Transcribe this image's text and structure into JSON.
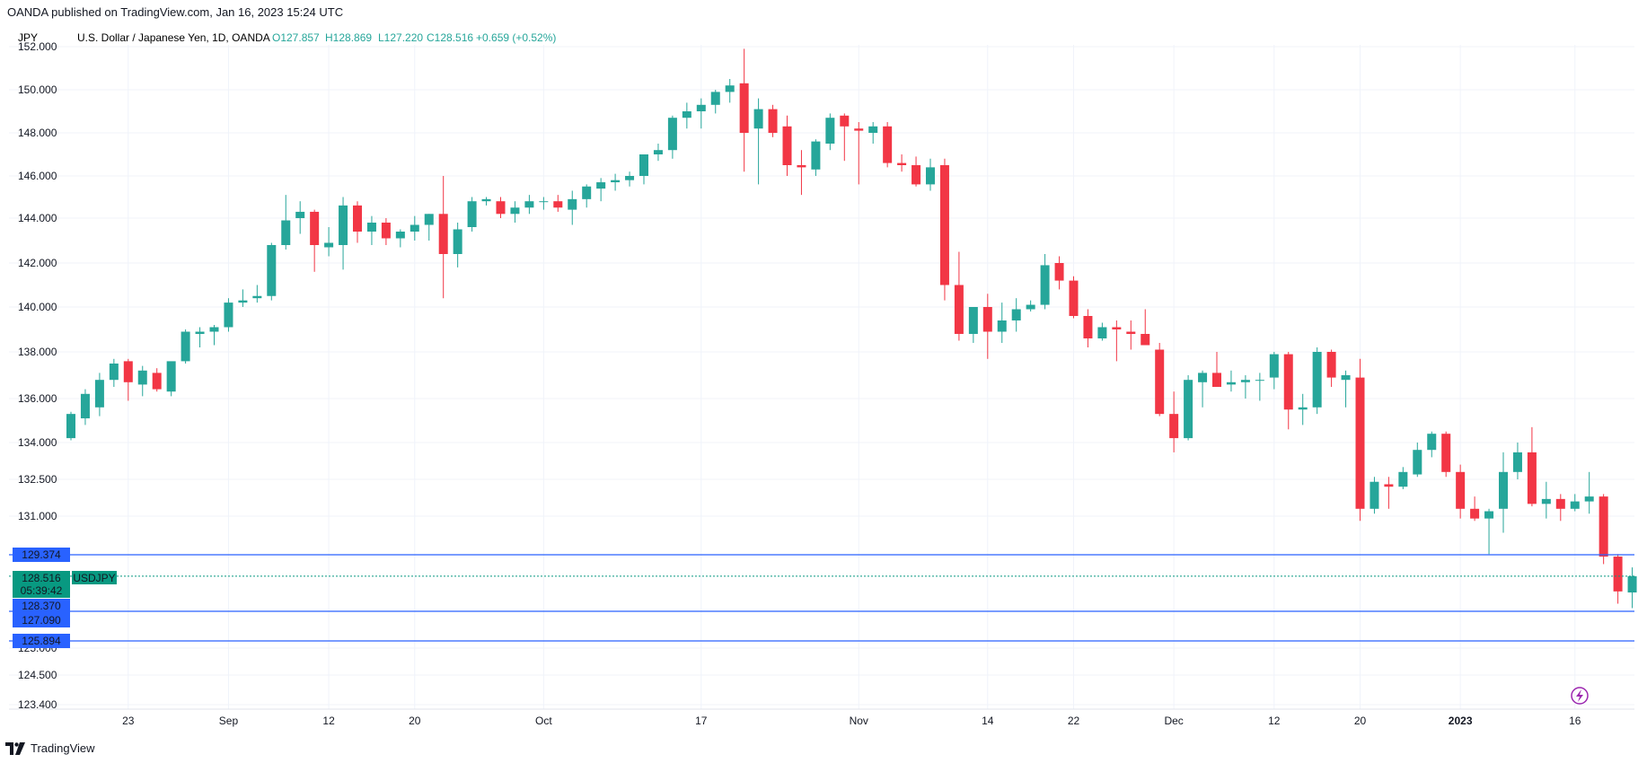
{
  "header": {
    "published": "OANDA published on TradingView.com, Jan 16, 2023 15:24 UTC"
  },
  "legend": {
    "currency": "JPY",
    "instrument": "U.S. Dollar / Japanese Yen, 1D, OANDA",
    "open": "O127.857",
    "high": "H128.869",
    "low": "L127.220",
    "close": "C128.516",
    "change": "+0.659 (+0.52%)"
  },
  "colors": {
    "up": "#26a69a",
    "down": "#f23645",
    "line": "#2962ff",
    "grid": "#f0f3fa",
    "text": "#131722"
  },
  "price_labels": {
    "current": "128.516",
    "countdown": "05:39:42",
    "symbol": "USDJPY",
    "levels": [
      "129.374",
      "128.370",
      "127.090",
      "125.894"
    ]
  },
  "footer": {
    "brand": "TradingView"
  },
  "icons": {
    "flash": "flash-circle-icon",
    "logo": "tradingview-logo-icon"
  },
  "chart_data": {
    "type": "candlestick",
    "title": "U.S. Dollar / Japanese Yen, 1D, OANDA",
    "y_ticks": [
      "152.000",
      "150.000",
      "148.000",
      "146.000",
      "144.000",
      "142.000",
      "140.000",
      "138.000",
      "136.000",
      "134.000",
      "132.500",
      "131.000",
      "125.000",
      "124.500",
      "123.400"
    ],
    "x_ticks": [
      {
        "label": "23",
        "bar": 4
      },
      {
        "label": "Sep",
        "bar": 11
      },
      {
        "label": "12",
        "bar": 18
      },
      {
        "label": "20",
        "bar": 24
      },
      {
        "label": "Oct",
        "bar": 33
      },
      {
        "label": "17",
        "bar": 44
      },
      {
        "label": "Nov",
        "bar": 55
      },
      {
        "label": "14",
        "bar": 64
      },
      {
        "label": "22",
        "bar": 70
      },
      {
        "label": "Dec",
        "bar": 77
      },
      {
        "label": "12",
        "bar": 84
      },
      {
        "label": "20",
        "bar": 90
      },
      {
        "label": "2023",
        "bar": 97
      },
      {
        "label": "16",
        "bar": 105
      }
    ],
    "horizontal_lines": [
      129.374,
      127.09,
      125.894
    ],
    "current_price": 128.516,
    "candles": [
      [
        134.2,
        135.4,
        134.1,
        135.3
      ],
      [
        135.1,
        136.4,
        134.8,
        136.2
      ],
      [
        135.6,
        137.1,
        135.2,
        136.8
      ],
      [
        136.8,
        137.7,
        136.5,
        137.5
      ],
      [
        137.6,
        137.7,
        135.9,
        136.7
      ],
      [
        136.6,
        137.4,
        136.1,
        137.2
      ],
      [
        137.1,
        137.3,
        136.3,
        136.4
      ],
      [
        136.3,
        137.5,
        136.1,
        137.6
      ],
      [
        137.6,
        139.0,
        137.5,
        138.9
      ],
      [
        138.8,
        139.1,
        138.2,
        138.9
      ],
      [
        138.9,
        139.2,
        138.3,
        139.1
      ],
      [
        139.1,
        140.4,
        138.9,
        140.2
      ],
      [
        140.2,
        140.8,
        140.0,
        140.3
      ],
      [
        140.4,
        141.0,
        140.2,
        140.5
      ],
      [
        140.5,
        142.9,
        140.3,
        142.8
      ],
      [
        142.8,
        145.1,
        142.6,
        143.9
      ],
      [
        144.0,
        144.8,
        143.3,
        144.3
      ],
      [
        144.3,
        144.4,
        141.6,
        142.8
      ],
      [
        142.7,
        143.6,
        142.3,
        142.9
      ],
      [
        142.8,
        145.0,
        141.7,
        144.6
      ],
      [
        144.6,
        144.8,
        142.9,
        143.4
      ],
      [
        143.4,
        144.1,
        142.8,
        143.8
      ],
      [
        143.8,
        144.0,
        142.8,
        143.1
      ],
      [
        143.1,
        143.5,
        142.7,
        143.4
      ],
      [
        143.4,
        144.1,
        143.0,
        143.7
      ],
      [
        143.7,
        144.2,
        143.0,
        144.2
      ],
      [
        144.2,
        146.0,
        140.4,
        142.4
      ],
      [
        142.4,
        143.8,
        141.8,
        143.5
      ],
      [
        143.6,
        145.0,
        143.4,
        144.8
      ],
      [
        144.8,
        145.0,
        144.6,
        144.9
      ],
      [
        144.8,
        145.0,
        144.0,
        144.2
      ],
      [
        144.2,
        144.8,
        143.8,
        144.5
      ],
      [
        144.5,
        145.1,
        144.2,
        144.8
      ],
      [
        144.8,
        145.0,
        144.4,
        144.8
      ],
      [
        144.8,
        145.1,
        144.3,
        144.5
      ],
      [
        144.4,
        145.3,
        143.7,
        144.9
      ],
      [
        144.9,
        145.6,
        144.5,
        145.5
      ],
      [
        145.4,
        145.9,
        144.8,
        145.7
      ],
      [
        145.7,
        146.1,
        145.3,
        145.8
      ],
      [
        145.8,
        146.2,
        145.5,
        146.0
      ],
      [
        146.0,
        147.0,
        145.6,
        147.0
      ],
      [
        147.0,
        147.5,
        146.7,
        147.2
      ],
      [
        147.2,
        148.8,
        146.8,
        148.7
      ],
      [
        148.7,
        149.4,
        148.2,
        149.0
      ],
      [
        149.0,
        149.6,
        148.2,
        149.3
      ],
      [
        149.3,
        150.0,
        148.9,
        149.9
      ],
      [
        149.9,
        150.5,
        149.4,
        150.2
      ],
      [
        150.3,
        151.9,
        146.2,
        148.0
      ],
      [
        148.2,
        149.6,
        145.6,
        149.1
      ],
      [
        149.1,
        149.3,
        147.8,
        148.0
      ],
      [
        148.3,
        148.8,
        146.0,
        146.5
      ],
      [
        146.5,
        147.2,
        145.1,
        146.4
      ],
      [
        146.3,
        147.7,
        146.0,
        147.6
      ],
      [
        147.5,
        148.9,
        147.2,
        148.7
      ],
      [
        148.8,
        148.9,
        146.7,
        148.3
      ],
      [
        148.2,
        148.5,
        145.6,
        148.1
      ],
      [
        148.0,
        148.5,
        147.5,
        148.3
      ],
      [
        148.3,
        148.5,
        146.4,
        146.6
      ],
      [
        146.6,
        147.0,
        146.2,
        146.5
      ],
      [
        146.5,
        146.9,
        145.5,
        145.6
      ],
      [
        145.6,
        146.8,
        145.3,
        146.4
      ],
      [
        146.5,
        146.8,
        140.3,
        141.0
      ],
      [
        141.0,
        142.5,
        138.5,
        138.8
      ],
      [
        138.8,
        140.0,
        138.4,
        140.0
      ],
      [
        140.0,
        140.6,
        137.7,
        138.9
      ],
      [
        138.9,
        140.2,
        138.4,
        139.4
      ],
      [
        139.4,
        140.4,
        138.9,
        139.9
      ],
      [
        139.9,
        140.3,
        139.8,
        140.1
      ],
      [
        140.1,
        142.4,
        139.9,
        141.9
      ],
      [
        142.0,
        142.3,
        140.8,
        141.2
      ],
      [
        141.2,
        141.4,
        139.5,
        139.6
      ],
      [
        139.6,
        139.9,
        138.2,
        138.6
      ],
      [
        138.6,
        139.3,
        138.5,
        139.1
      ],
      [
        139.1,
        139.4,
        137.6,
        139.0
      ],
      [
        138.9,
        139.4,
        138.1,
        138.8
      ],
      [
        138.8,
        139.9,
        138.5,
        138.3
      ],
      [
        138.1,
        138.4,
        135.2,
        135.3
      ],
      [
        135.3,
        136.3,
        133.6,
        134.2
      ],
      [
        134.2,
        137.0,
        134.1,
        136.8
      ],
      [
        136.7,
        137.2,
        135.6,
        137.1
      ],
      [
        137.1,
        138.0,
        136.5,
        136.5
      ],
      [
        136.6,
        137.2,
        136.3,
        136.7
      ],
      [
        136.7,
        137.0,
        136.0,
        136.8
      ],
      [
        136.8,
        137.1,
        135.9,
        136.8
      ],
      [
        136.9,
        138.0,
        136.4,
        137.9
      ],
      [
        137.9,
        138.0,
        134.6,
        135.5
      ],
      [
        135.5,
        136.2,
        134.8,
        135.6
      ],
      [
        135.6,
        138.2,
        135.3,
        138.0
      ],
      [
        138.0,
        138.1,
        136.5,
        136.9
      ],
      [
        136.8,
        137.2,
        135.6,
        137.0
      ],
      [
        136.9,
        137.7,
        130.8,
        131.3
      ],
      [
        131.3,
        132.6,
        131.1,
        132.4
      ],
      [
        132.3,
        132.6,
        131.3,
        132.2
      ],
      [
        132.2,
        133.0,
        132.1,
        132.8
      ],
      [
        132.7,
        134.0,
        132.6,
        133.7
      ],
      [
        133.7,
        134.5,
        133.4,
        134.4
      ],
      [
        134.4,
        134.5,
        132.6,
        132.8
      ],
      [
        132.8,
        133.1,
        130.9,
        131.3
      ],
      [
        131.3,
        131.8,
        130.8,
        130.9
      ],
      [
        130.9,
        131.3,
        129.4,
        131.2
      ],
      [
        131.3,
        133.6,
        130.3,
        132.8
      ],
      [
        132.8,
        134.0,
        132.5,
        133.6
      ],
      [
        133.6,
        134.7,
        131.4,
        131.5
      ],
      [
        131.5,
        132.4,
        130.9,
        131.7
      ],
      [
        131.7,
        131.9,
        130.8,
        131.3
      ],
      [
        131.3,
        131.9,
        131.2,
        131.6
      ],
      [
        131.6,
        132.8,
        131.1,
        131.8
      ],
      [
        131.8,
        131.9,
        129.0,
        129.3
      ],
      [
        129.3,
        129.4,
        127.4,
        127.9
      ],
      [
        127.857,
        128.869,
        127.22,
        128.516
      ]
    ]
  }
}
